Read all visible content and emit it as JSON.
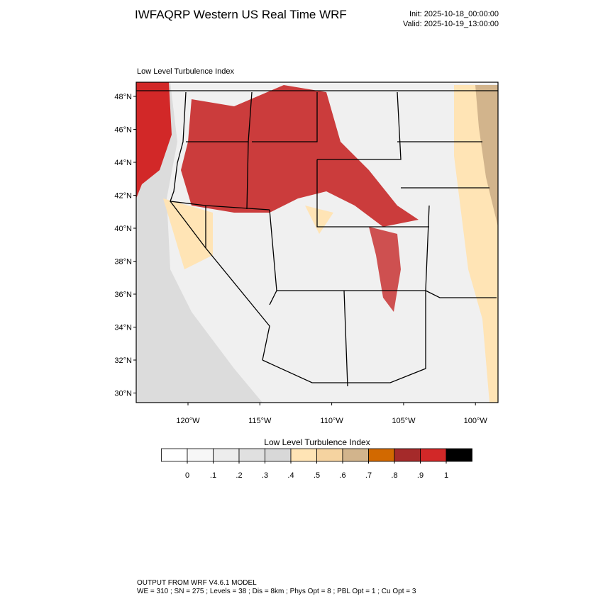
{
  "header": {
    "title": "IWFAQRP Western US Real Time WRF",
    "init": "Init: 2025-10-18_00:00:00",
    "valid": "Valid: 2025-10-19_13:00:00"
  },
  "map": {
    "subtitle": "Low Level Turbulence Index",
    "lat_labels": [
      "48°N",
      "46°N",
      "44°N",
      "42°N",
      "40°N",
      "38°N",
      "36°N",
      "34°N",
      "32°N",
      "30°N"
    ],
    "lon_labels": [
      "120°W",
      "115°W",
      "110°W",
      "105°W",
      "100°W"
    ]
  },
  "colorbar": {
    "title": "Low Level Turbulence Index",
    "colors": [
      "#ffffff",
      "#f7f7f7",
      "#ededed",
      "#e0e0e0",
      "#d8d8d8",
      "#ffe4b5",
      "#f5d3a0",
      "#d2b48c",
      "#d26900",
      "#a52a2a",
      "#d22828",
      "#000000"
    ],
    "ticks": [
      0,
      {
        "value": 0.1,
        "label": ".1"
      },
      {
        "value": 0.2,
        "label": ".2"
      },
      {
        "value": 0.3,
        "label": ".3"
      },
      {
        "value": 0.4,
        "label": ".4"
      },
      {
        "value": 0.5,
        "label": ".5"
      },
      {
        "value": 0.6,
        "label": ".6"
      },
      {
        "value": 0.7,
        "label": ".7"
      },
      {
        "value": 0.8,
        "label": ".8"
      },
      {
        "value": 0.9,
        "label": ".9"
      },
      1
    ]
  },
  "footer": {
    "line1": "OUTPUT FROM WRF V4.6.1 MODEL",
    "line2": "WE = 310 ; SN = 275 ; Levels = 38 ; Dis = 8km ; Phys Opt = 8 ; PBL Opt = 1 ; Cu Opt = 3"
  }
}
